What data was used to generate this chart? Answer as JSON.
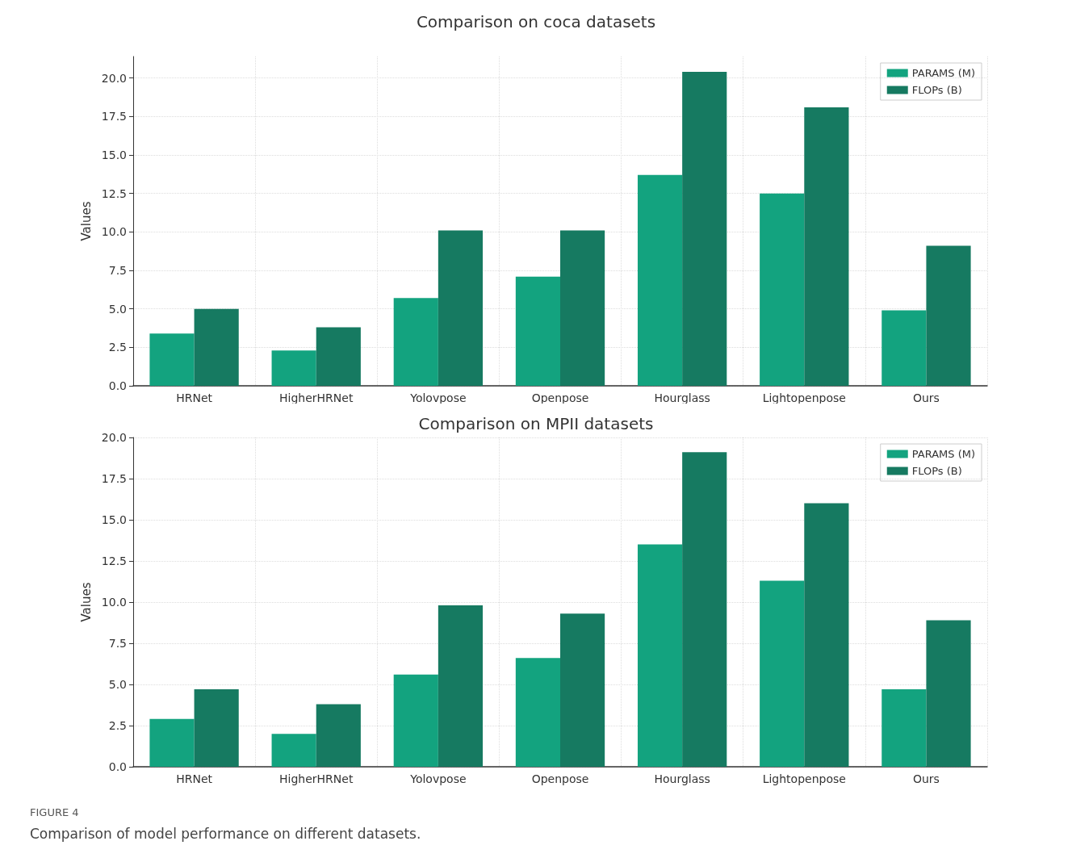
{
  "chart_data": [
    {
      "type": "bar",
      "title": "Comparison on coca datasets",
      "ylabel": "Values",
      "categories": [
        "HRNet",
        "HigherHRNet",
        "Yolovpose",
        "Openpose",
        "Hourglass",
        "Lightopenpose",
        "Ours"
      ],
      "series": [
        {
          "name": "PARAMS (M)",
          "color": "#13a37f",
          "values": [
            3.4,
            2.3,
            5.7,
            7.1,
            13.7,
            12.5,
            4.9
          ]
        },
        {
          "name": "FLOPs (B)",
          "color": "#167a61",
          "values": [
            5.0,
            3.8,
            10.1,
            10.1,
            20.4,
            18.1,
            9.1
          ]
        }
      ],
      "ylim": [
        0,
        21.4
      ],
      "yticks": [
        {
          "value": 0,
          "label": "0.0"
        },
        2.5,
        {
          "value": 5,
          "label": "5.0"
        },
        7.5,
        {
          "value": 10,
          "label": "10.0"
        },
        12.5,
        {
          "value": 15,
          "label": "15.0"
        },
        17.5,
        {
          "value": 20,
          "label": "20.0"
        }
      ],
      "grid": true,
      "legend": "top right"
    },
    {
      "type": "bar",
      "title": "Comparison on MPII datasets",
      "ylabel": "Values",
      "categories": [
        "HRNet",
        "HigherHRNet",
        "Yolovpose",
        "Openpose",
        "Hourglass",
        "Lightopenpose",
        "Ours"
      ],
      "series": [
        {
          "name": "PARAMS (M)",
          "color": "#13a37f",
          "values": [
            2.9,
            2.0,
            5.6,
            6.6,
            13.5,
            11.3,
            4.7
          ]
        },
        {
          "name": "FLOPs (B)",
          "color": "#167a61",
          "values": [
            4.7,
            3.8,
            9.8,
            9.3,
            19.1,
            16.0,
            8.9
          ]
        }
      ],
      "ylim": [
        0,
        20
      ],
      "yticks": [
        {
          "value": 0,
          "label": "0.0"
        },
        2.5,
        {
          "value": 5,
          "label": "5.0"
        },
        7.5,
        {
          "value": 10,
          "label": "10.0"
        },
        12.5,
        {
          "value": 15,
          "label": "15.0"
        },
        17.5,
        {
          "value": 20,
          "label": "20.0"
        }
      ],
      "grid": true,
      "legend": "top right",
      "annotations": [
        "FIGURE 4",
        "Comparison of model performance on different datasets."
      ]
    }
  ]
}
